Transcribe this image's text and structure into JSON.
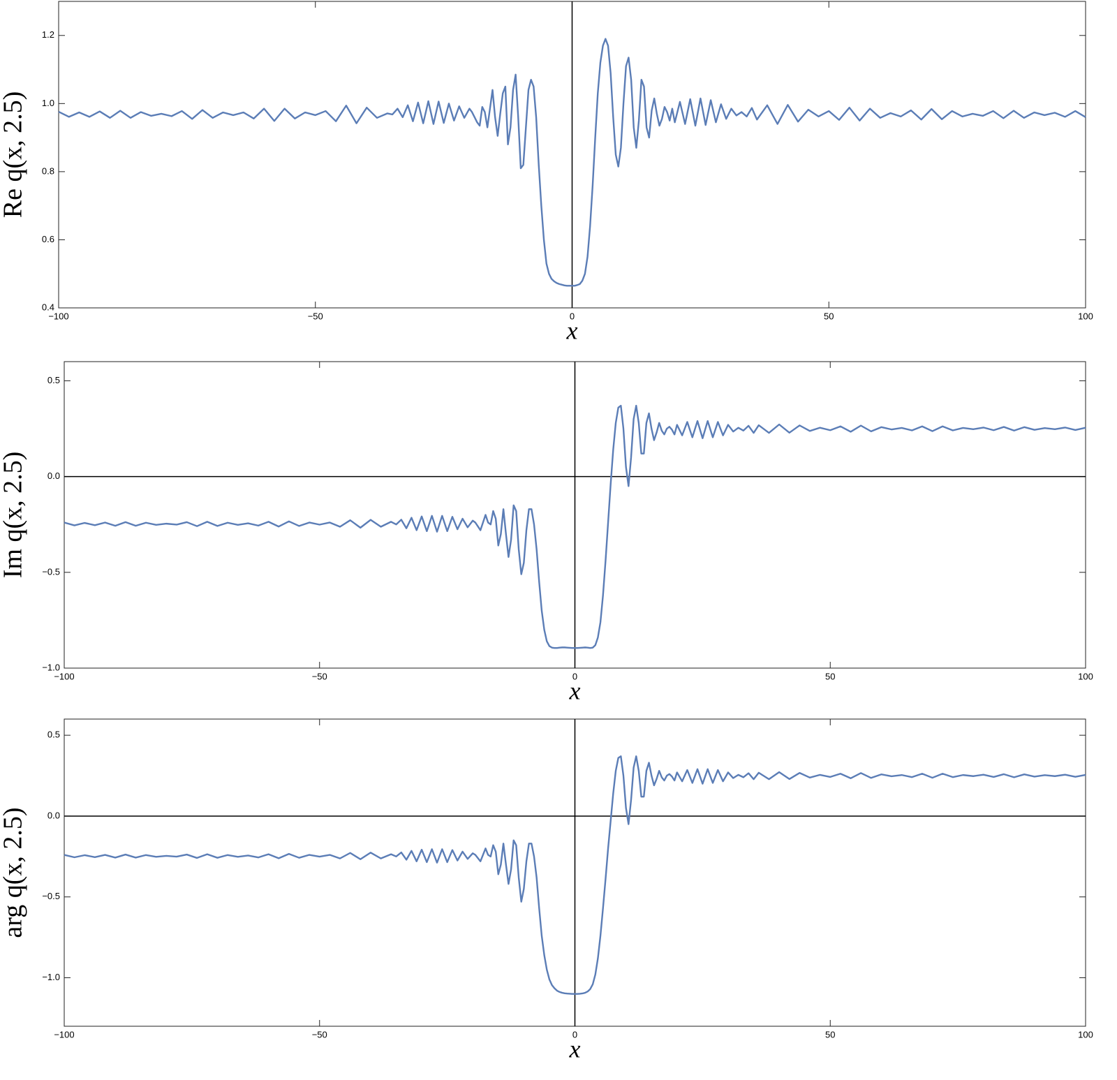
{
  "chart_data": [
    {
      "type": "line",
      "ylabel": "Re q(x, 2.5)",
      "xlabel": "x",
      "color": "#5b7db6",
      "xlim": [
        -100,
        100
      ],
      "ylim": [
        0.4,
        1.3
      ],
      "xticks": [
        {
          "value": -100,
          "label": "−100"
        },
        {
          "value": -50,
          "label": "−50"
        },
        0,
        50,
        100
      ],
      "yticks": [
        0.4,
        0.6,
        0.8,
        {
          "value": 1.0,
          "label": "1.0"
        },
        1.2
      ],
      "x": [
        -100,
        -98,
        -96,
        -94,
        -92,
        -90,
        -88,
        -86,
        -84,
        -82,
        -80,
        -78,
        -76,
        -74,
        -72,
        -70,
        -68,
        -66,
        -64,
        -62,
        -60,
        -58,
        -56,
        -54,
        -52,
        -50,
        -48,
        -46,
        -44,
        -42,
        -40,
        -38,
        -36,
        -35,
        -34,
        -33,
        -32,
        -31,
        -30,
        -29,
        -28,
        -27,
        -26,
        -25,
        -24,
        -23,
        -22,
        -21,
        -20,
        -19.5,
        -19,
        -18.5,
        -18,
        -17.5,
        -17,
        -16.5,
        -16,
        -15.5,
        -15,
        -14.5,
        -14,
        -13.5,
        -13,
        -12.5,
        -12,
        -11.5,
        -11,
        -10.5,
        -10,
        -9.5,
        -9,
        -8.5,
        -8,
        -7.5,
        -7,
        -6.5,
        -6,
        -5.5,
        -5,
        -4.5,
        -4,
        -3.5,
        -3,
        -2.5,
        -2,
        -1.5,
        -1,
        -0.5,
        0,
        0.5,
        1,
        1.5,
        2,
        2.5,
        3,
        3.5,
        4,
        4.5,
        5,
        5.5,
        6,
        6.5,
        7,
        7.5,
        8,
        8.5,
        9,
        9.5,
        10,
        10.5,
        11,
        11.5,
        12,
        12.5,
        13,
        13.5,
        14,
        14.5,
        15,
        15.5,
        16,
        16.5,
        17,
        17.5,
        18,
        18.5,
        19,
        19.5,
        20,
        21,
        22,
        23,
        24,
        25,
        26,
        27,
        28,
        29,
        30,
        31,
        32,
        33,
        34,
        35,
        36,
        38,
        40,
        42,
        44,
        46,
        48,
        50,
        52,
        54,
        56,
        58,
        60,
        62,
        64,
        66,
        68,
        70,
        72,
        74,
        76,
        78,
        80,
        82,
        84,
        86,
        88,
        90,
        92,
        94,
        96,
        98,
        100
      ],
      "values": [
        0.976,
        0.961,
        0.974,
        0.961,
        0.977,
        0.958,
        0.979,
        0.958,
        0.975,
        0.964,
        0.97,
        0.963,
        0.978,
        0.955,
        0.981,
        0.958,
        0.974,
        0.966,
        0.974,
        0.956,
        0.985,
        0.949,
        0.985,
        0.956,
        0.974,
        0.966,
        0.978,
        0.948,
        0.994,
        0.942,
        0.988,
        0.958,
        0.971,
        0.968,
        0.985,
        0.96,
        0.995,
        0.948,
        1.003,
        0.942,
        1.007,
        0.94,
        1.006,
        0.943,
        1.0,
        0.95,
        0.992,
        0.958,
        0.985,
        0.975,
        0.96,
        0.945,
        0.935,
        0.99,
        0.975,
        0.93,
        0.985,
        1.04,
        0.96,
        0.905,
        0.97,
        1.03,
        1.05,
        0.88,
        0.93,
        1.04,
        1.085,
        0.96,
        0.81,
        0.82,
        0.93,
        1.04,
        1.07,
        1.05,
        0.96,
        0.82,
        0.7,
        0.6,
        0.53,
        0.5,
        0.485,
        0.478,
        0.473,
        0.47,
        0.468,
        0.466,
        0.465,
        0.465,
        0.465,
        0.465,
        0.467,
        0.47,
        0.48,
        0.5,
        0.55,
        0.64,
        0.76,
        0.9,
        1.03,
        1.12,
        1.17,
        1.19,
        1.17,
        1.09,
        0.96,
        0.85,
        0.815,
        0.87,
        1.0,
        1.11,
        1.135,
        1.07,
        0.93,
        0.87,
        0.95,
        1.07,
        1.05,
        0.93,
        0.9,
        0.98,
        1.015,
        0.97,
        0.935,
        0.955,
        0.99,
        0.975,
        0.95,
        0.985,
        0.945,
        1.005,
        0.94,
        1.013,
        0.935,
        1.015,
        0.937,
        1.01,
        0.945,
        0.998,
        0.955,
        0.985,
        0.965,
        0.975,
        0.962,
        0.987,
        0.953,
        0.995,
        0.94,
        0.996,
        0.947,
        0.982,
        0.962,
        0.978,
        0.952,
        0.988,
        0.95,
        0.985,
        0.958,
        0.972,
        0.962,
        0.98,
        0.953,
        0.984,
        0.954,
        0.978,
        0.962,
        0.97,
        0.964,
        0.978,
        0.957,
        0.979,
        0.958,
        0.974,
        0.966,
        0.973,
        0.961,
        0.978,
        0.96
      ]
    },
    {
      "type": "line",
      "ylabel": "Im q(x, 2.5)",
      "xlabel": "x",
      "color": "#5b7db6",
      "xlim": [
        -100,
        100
      ],
      "ylim": [
        -1.0,
        0.6
      ],
      "xticks": [
        {
          "value": -100,
          "label": "−100"
        },
        {
          "value": -50,
          "label": "−50"
        },
        0,
        50,
        100
      ],
      "yticks": [
        {
          "value": -1.0,
          "label": "−1.0"
        },
        {
          "value": -0.5,
          "label": "−0.5"
        },
        {
          "value": 0,
          "label": "0.0"
        },
        0.5
      ],
      "x": [
        -100,
        -98,
        -96,
        -94,
        -92,
        -90,
        -88,
        -86,
        -84,
        -82,
        -80,
        -78,
        -76,
        -74,
        -72,
        -70,
        -68,
        -66,
        -64,
        -62,
        -60,
        -58,
        -56,
        -54,
        -52,
        -50,
        -48,
        -46,
        -44,
        -42,
        -40,
        -38,
        -36,
        -35,
        -34,
        -33,
        -32,
        -31,
        -30,
        -29,
        -28,
        -27,
        -26,
        -25,
        -24,
        -23,
        -22,
        -21,
        -20,
        -19.5,
        -19,
        -18.5,
        -18,
        -17.5,
        -17,
        -16.5,
        -16,
        -15.5,
        -15,
        -14.5,
        -14,
        -13.5,
        -13,
        -12.5,
        -12,
        -11.5,
        -11,
        -10.5,
        -10,
        -9.5,
        -9,
        -8.5,
        -8,
        -7.5,
        -7,
        -6.5,
        -6,
        -5.5,
        -5,
        -4.5,
        -4,
        -3.5,
        -3,
        -2.5,
        -2,
        -1.5,
        -1,
        -0.5,
        0,
        0.5,
        1,
        1.5,
        2,
        2.5,
        3,
        3.5,
        4,
        4.5,
        5,
        5.5,
        6,
        6.5,
        7,
        7.5,
        8,
        8.5,
        9,
        9.5,
        10,
        10.5,
        11,
        11.5,
        12,
        12.5,
        13,
        13.5,
        14,
        14.5,
        15,
        15.5,
        16,
        16.5,
        17,
        17.5,
        18,
        18.5,
        19,
        19.5,
        20,
        21,
        22,
        23,
        24,
        25,
        26,
        27,
        28,
        29,
        30,
        31,
        32,
        33,
        34,
        35,
        36,
        38,
        40,
        42,
        44,
        46,
        48,
        50,
        52,
        54,
        56,
        58,
        60,
        62,
        64,
        66,
        68,
        70,
        72,
        74,
        76,
        78,
        80,
        82,
        84,
        86,
        88,
        90,
        92,
        94,
        96,
        98,
        100
      ],
      "values": [
        -0.24,
        -0.255,
        -0.242,
        -0.254,
        -0.24,
        -0.257,
        -0.238,
        -0.257,
        -0.241,
        -0.252,
        -0.246,
        -0.251,
        -0.238,
        -0.259,
        -0.236,
        -0.258,
        -0.241,
        -0.252,
        -0.244,
        -0.256,
        -0.236,
        -0.261,
        -0.234,
        -0.258,
        -0.24,
        -0.251,
        -0.24,
        -0.262,
        -0.228,
        -0.267,
        -0.226,
        -0.262,
        -0.236,
        -0.25,
        -0.225,
        -0.27,
        -0.215,
        -0.28,
        -0.208,
        -0.285,
        -0.205,
        -0.288,
        -0.205,
        -0.285,
        -0.21,
        -0.275,
        -0.22,
        -0.265,
        -0.23,
        -0.24,
        -0.26,
        -0.28,
        -0.24,
        -0.2,
        -0.24,
        -0.25,
        -0.18,
        -0.22,
        -0.36,
        -0.3,
        -0.17,
        -0.3,
        -0.42,
        -0.33,
        -0.15,
        -0.18,
        -0.38,
        -0.51,
        -0.45,
        -0.28,
        -0.17,
        -0.17,
        -0.25,
        -0.38,
        -0.55,
        -0.7,
        -0.8,
        -0.86,
        -0.885,
        -0.893,
        -0.895,
        -0.895,
        -0.893,
        -0.892,
        -0.892,
        -0.893,
        -0.894,
        -0.895,
        -0.895,
        -0.895,
        -0.894,
        -0.893,
        -0.892,
        -0.893,
        -0.895,
        -0.893,
        -0.88,
        -0.84,
        -0.76,
        -0.62,
        -0.44,
        -0.24,
        -0.04,
        0.14,
        0.28,
        0.36,
        0.37,
        0.25,
        0.05,
        -0.05,
        0.1,
        0.3,
        0.37,
        0.28,
        0.12,
        0.12,
        0.28,
        0.33,
        0.25,
        0.19,
        0.23,
        0.28,
        0.24,
        0.22,
        0.25,
        0.26,
        0.245,
        0.22,
        0.27,
        0.215,
        0.285,
        0.205,
        0.29,
        0.2,
        0.29,
        0.205,
        0.285,
        0.215,
        0.27,
        0.235,
        0.255,
        0.24,
        0.265,
        0.228,
        0.268,
        0.228,
        0.272,
        0.229,
        0.267,
        0.238,
        0.255,
        0.242,
        0.262,
        0.234,
        0.266,
        0.236,
        0.258,
        0.246,
        0.254,
        0.241,
        0.262,
        0.237,
        0.262,
        0.241,
        0.254,
        0.247,
        0.256,
        0.242,
        0.259,
        0.24,
        0.258,
        0.244,
        0.253,
        0.247,
        0.256,
        0.243,
        0.255
      ]
    },
    {
      "type": "line",
      "ylabel": "arg q(x, 2.5)",
      "xlabel": "x",
      "color": "#5b7db6",
      "xlim": [
        -100,
        100
      ],
      "ylim": [
        -1.3,
        0.6
      ],
      "xticks": [
        {
          "value": -100,
          "label": "−100"
        },
        {
          "value": -50,
          "label": "−50"
        },
        0,
        50,
        100
      ],
      "yticks": [
        {
          "value": -1.0,
          "label": "−1.0"
        },
        {
          "value": -0.5,
          "label": "−0.5"
        },
        {
          "value": 0,
          "label": "0.0"
        },
        0.5
      ],
      "x": [
        -100,
        -98,
        -96,
        -94,
        -92,
        -90,
        -88,
        -86,
        -84,
        -82,
        -80,
        -78,
        -76,
        -74,
        -72,
        -70,
        -68,
        -66,
        -64,
        -62,
        -60,
        -58,
        -56,
        -54,
        -52,
        -50,
        -48,
        -46,
        -44,
        -42,
        -40,
        -38,
        -36,
        -35,
        -34,
        -33,
        -32,
        -31,
        -30,
        -29,
        -28,
        -27,
        -26,
        -25,
        -24,
        -23,
        -22,
        -21,
        -20,
        -19.5,
        -19,
        -18.5,
        -18,
        -17.5,
        -17,
        -16.5,
        -16,
        -15.5,
        -15,
        -14.5,
        -14,
        -13.5,
        -13,
        -12.5,
        -12,
        -11.5,
        -11,
        -10.5,
        -10,
        -9.5,
        -9,
        -8.5,
        -8,
        -7.5,
        -7,
        -6.5,
        -6,
        -5.5,
        -5,
        -4.5,
        -4,
        -3.5,
        -3,
        -2.5,
        -2,
        -1.5,
        -1,
        -0.5,
        0,
        0.5,
        1,
        1.5,
        2,
        2.5,
        3,
        3.5,
        4,
        4.5,
        5,
        5.5,
        6,
        6.5,
        7,
        7.5,
        8,
        8.5,
        9,
        9.5,
        10,
        10.5,
        11,
        11.5,
        12,
        12.5,
        13,
        13.5,
        14,
        14.5,
        15,
        15.5,
        16,
        16.5,
        17,
        17.5,
        18,
        18.5,
        19,
        19.5,
        20,
        21,
        22,
        23,
        24,
        25,
        26,
        27,
        28,
        29,
        30,
        31,
        32,
        33,
        34,
        35,
        36,
        38,
        40,
        42,
        44,
        46,
        48,
        50,
        52,
        54,
        56,
        58,
        60,
        62,
        64,
        66,
        68,
        70,
        72,
        74,
        76,
        78,
        80,
        82,
        84,
        86,
        88,
        90,
        92,
        94,
        96,
        98,
        100
      ],
      "values": [
        -0.24,
        -0.255,
        -0.242,
        -0.254,
        -0.24,
        -0.257,
        -0.238,
        -0.257,
        -0.241,
        -0.252,
        -0.246,
        -0.251,
        -0.238,
        -0.259,
        -0.236,
        -0.258,
        -0.241,
        -0.252,
        -0.244,
        -0.256,
        -0.236,
        -0.261,
        -0.234,
        -0.258,
        -0.24,
        -0.251,
        -0.24,
        -0.262,
        -0.228,
        -0.267,
        -0.226,
        -0.262,
        -0.236,
        -0.25,
        -0.225,
        -0.27,
        -0.215,
        -0.28,
        -0.208,
        -0.285,
        -0.205,
        -0.288,
        -0.205,
        -0.285,
        -0.21,
        -0.275,
        -0.22,
        -0.265,
        -0.23,
        -0.24,
        -0.26,
        -0.28,
        -0.24,
        -0.2,
        -0.24,
        -0.25,
        -0.18,
        -0.22,
        -0.36,
        -0.3,
        -0.17,
        -0.3,
        -0.42,
        -0.33,
        -0.15,
        -0.18,
        -0.38,
        -0.53,
        -0.45,
        -0.28,
        -0.17,
        -0.17,
        -0.25,
        -0.38,
        -0.57,
        -0.74,
        -0.86,
        -0.95,
        -1.01,
        -1.045,
        -1.065,
        -1.08,
        -1.088,
        -1.093,
        -1.096,
        -1.098,
        -1.099,
        -1.1,
        -1.1,
        -1.1,
        -1.099,
        -1.097,
        -1.093,
        -1.085,
        -1.07,
        -1.04,
        -0.98,
        -0.88,
        -0.74,
        -0.57,
        -0.39,
        -0.2,
        -0.03,
        0.14,
        0.28,
        0.36,
        0.37,
        0.25,
        0.05,
        -0.05,
        0.1,
        0.3,
        0.37,
        0.28,
        0.12,
        0.12,
        0.28,
        0.33,
        0.25,
        0.19,
        0.23,
        0.28,
        0.24,
        0.22,
        0.25,
        0.26,
        0.245,
        0.22,
        0.27,
        0.215,
        0.285,
        0.205,
        0.29,
        0.2,
        0.29,
        0.205,
        0.285,
        0.215,
        0.27,
        0.235,
        0.255,
        0.24,
        0.265,
        0.228,
        0.268,
        0.228,
        0.272,
        0.229,
        0.267,
        0.238,
        0.255,
        0.242,
        0.262,
        0.234,
        0.266,
        0.236,
        0.258,
        0.246,
        0.254,
        0.241,
        0.262,
        0.237,
        0.262,
        0.241,
        0.254,
        0.247,
        0.256,
        0.242,
        0.259,
        0.24,
        0.258,
        0.244,
        0.253,
        0.247,
        0.256,
        0.243,
        0.255
      ]
    }
  ]
}
